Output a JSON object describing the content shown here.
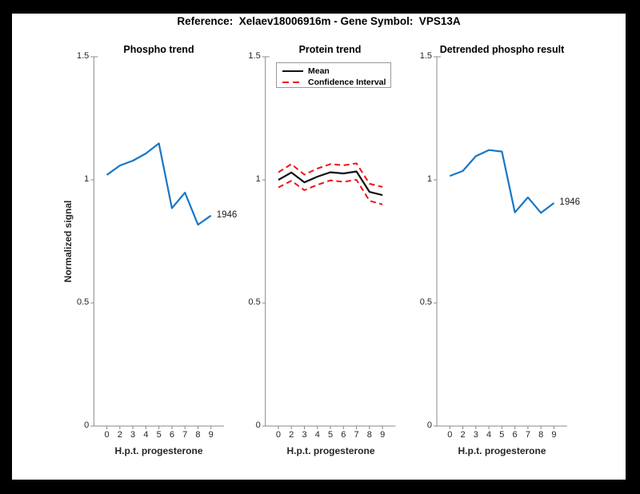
{
  "figure": {
    "title": "Reference:  Xelaev18006916m - Gene Symbol:  VPS13A",
    "background_color": "#000000",
    "canvas_color": "#ffffff",
    "axis_color": "#888888",
    "text_color": "#262626"
  },
  "axes": {
    "ylabel": "Normalized signal",
    "y_tick_values": [
      0,
      0.5,
      1,
      1.5
    ],
    "y_tick_labels": [
      "0",
      "0.5",
      "1",
      "1.5"
    ],
    "ylim": [
      0,
      1.5
    ]
  },
  "chart_data": [
    {
      "type": "line",
      "title": "Phospho trend",
      "xlabel": "H.p.t. progesterone",
      "ylabel": "Normalized signal",
      "categories": [
        "0",
        "2",
        "3",
        "4",
        "5",
        "6",
        "7",
        "8",
        "9"
      ],
      "ylim": [
        0,
        1.5
      ],
      "grid": false,
      "end_label": "1946",
      "series": [
        {
          "name": "1946",
          "color": "#1777C8",
          "style": "solid",
          "width": 2.2,
          "values": [
            1.02,
            1.058,
            1.078,
            1.107,
            1.148,
            0.885,
            0.948,
            0.818,
            0.855
          ]
        }
      ]
    },
    {
      "type": "line",
      "title": "Protein trend",
      "xlabel": "H.p.t. progesterone",
      "ylabel": "Normalized signal",
      "categories": [
        "0",
        "2",
        "3",
        "4",
        "5",
        "6",
        "7",
        "8",
        "9"
      ],
      "ylim": [
        0,
        1.5
      ],
      "grid": false,
      "legend": {
        "position": "top-left",
        "items": [
          {
            "label": "Mean",
            "color": "#111111",
            "style": "solid"
          },
          {
            "label": "Confidence Interval",
            "color": "#F01212",
            "style": "dashed"
          }
        ]
      },
      "series": [
        {
          "name": "Mean",
          "color": "#111111",
          "style": "solid",
          "width": 2.2,
          "values": [
            1.0,
            1.03,
            0.99,
            1.013,
            1.031,
            1.026,
            1.034,
            0.951,
            0.938
          ]
        },
        {
          "name": "Confidence Interval upper",
          "color": "#F01212",
          "style": "dashed",
          "width": 2,
          "values": [
            1.031,
            1.064,
            1.021,
            1.046,
            1.064,
            1.059,
            1.067,
            0.984,
            0.971
          ]
        },
        {
          "name": "Confidence Interval lower",
          "color": "#F01212",
          "style": "dashed",
          "width": 2,
          "values": [
            0.969,
            0.996,
            0.958,
            0.98,
            0.998,
            0.992,
            1.0,
            0.915,
            0.9
          ]
        }
      ]
    },
    {
      "type": "line",
      "title": "Detrended phospho result",
      "xlabel": "H.p.t. progesterone",
      "ylabel": "Normalized signal",
      "categories": [
        "0",
        "2",
        "3",
        "4",
        "5",
        "6",
        "7",
        "8",
        "9"
      ],
      "ylim": [
        0,
        1.5
      ],
      "grid": false,
      "end_label": "1946",
      "series": [
        {
          "name": "1946",
          "color": "#1777C8",
          "style": "solid",
          "width": 2.2,
          "values": [
            1.016,
            1.036,
            1.096,
            1.121,
            1.115,
            0.868,
            0.929,
            0.866,
            0.906
          ]
        }
      ]
    }
  ]
}
